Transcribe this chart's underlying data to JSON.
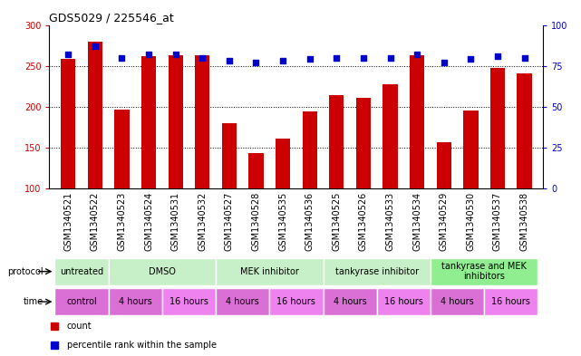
{
  "title": "GDS5029 / 225546_at",
  "samples": [
    "GSM1340521",
    "GSM1340522",
    "GSM1340523",
    "GSM1340524",
    "GSM1340531",
    "GSM1340532",
    "GSM1340527",
    "GSM1340528",
    "GSM1340535",
    "GSM1340536",
    "GSM1340525",
    "GSM1340526",
    "GSM1340533",
    "GSM1340534",
    "GSM1340529",
    "GSM1340530",
    "GSM1340537",
    "GSM1340538"
  ],
  "bar_values": [
    258,
    280,
    197,
    262,
    263,
    263,
    180,
    143,
    161,
    194,
    214,
    211,
    228,
    263,
    157,
    195,
    248,
    241
  ],
  "percentile_values": [
    82,
    87,
    80,
    82,
    82,
    80,
    78,
    77,
    78,
    79,
    80,
    80,
    80,
    82,
    77,
    79,
    81,
    80
  ],
  "bar_color": "#cc0000",
  "percentile_color": "#0000cc",
  "ylim_left": [
    100,
    300
  ],
  "ylim_right": [
    0,
    100
  ],
  "yticks_left": [
    100,
    150,
    200,
    250,
    300
  ],
  "yticks_right": [
    0,
    25,
    50,
    75,
    100
  ],
  "grid_values": [
    150,
    200,
    250
  ],
  "protocol_data": [
    {
      "label": "untreated",
      "start": 0,
      "end": 2,
      "color": "#c8f0c8"
    },
    {
      "label": "DMSO",
      "start": 2,
      "end": 6,
      "color": "#c8f0c8"
    },
    {
      "label": "MEK inhibitor",
      "start": 6,
      "end": 10,
      "color": "#c8f0c8"
    },
    {
      "label": "tankyrase inhibitor",
      "start": 10,
      "end": 14,
      "color": "#c8f0c8"
    },
    {
      "label": "tankyrase and MEK\ninhibitors",
      "start": 14,
      "end": 18,
      "color": "#90ee90"
    }
  ],
  "time_data": [
    {
      "label": "control",
      "start": 0,
      "end": 2,
      "color": "#da70d6"
    },
    {
      "label": "4 hours",
      "start": 2,
      "end": 4,
      "color": "#da70d6"
    },
    {
      "label": "16 hours",
      "start": 4,
      "end": 6,
      "color": "#ee82ee"
    },
    {
      "label": "4 hours",
      "start": 6,
      "end": 8,
      "color": "#da70d6"
    },
    {
      "label": "16 hours",
      "start": 8,
      "end": 10,
      "color": "#ee82ee"
    },
    {
      "label": "4 hours",
      "start": 10,
      "end": 12,
      "color": "#da70d6"
    },
    {
      "label": "16 hours",
      "start": 12,
      "end": 14,
      "color": "#ee82ee"
    },
    {
      "label": "4 hours",
      "start": 14,
      "end": 16,
      "color": "#da70d6"
    },
    {
      "label": "16 hours",
      "start": 16,
      "end": 18,
      "color": "#ee82ee"
    }
  ],
  "bar_bottom": 100,
  "bg_color": "#ffffff",
  "legend_count_color": "#cc0000",
  "legend_percentile_color": "#0000cc",
  "title_fontsize": 9,
  "tick_fontsize": 7,
  "label_fontsize": 7,
  "row_label_fontsize": 7,
  "cell_fontsize": 7
}
